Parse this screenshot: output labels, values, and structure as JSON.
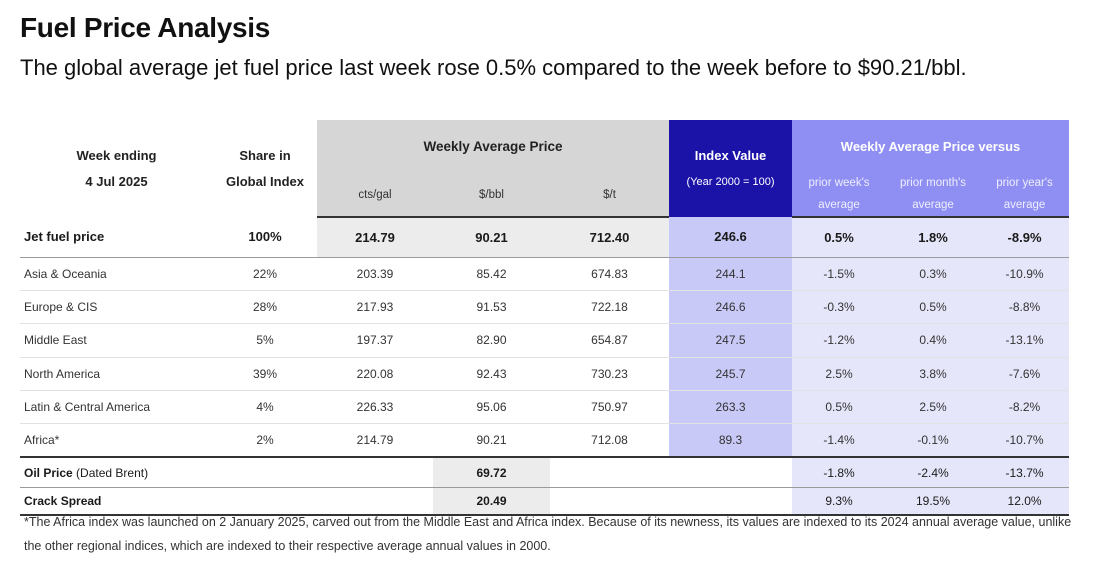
{
  "title": "Fuel Price Analysis",
  "subtitle": "The global average jet fuel price last week rose 0.5% compared to the week before to $90.21/bbl.",
  "header": {
    "week_label": "Week ending",
    "week_date": "4 Jul 2025",
    "share_label_1": "Share in",
    "share_label_2": "Global Index",
    "weekly_avg": "Weekly Average Price",
    "unit_cts": "cts/gal",
    "unit_bbl": "$/bbl",
    "unit_t": "$/t",
    "index_value": "Index Value",
    "index_base": "(Year 2000 = 100)",
    "versus": "Weekly Average Price versus",
    "prior_week_1": "prior week's",
    "prior_month_1": "prior month's",
    "prior_year_1": "prior year's",
    "average": "average"
  },
  "jet": {
    "label": "Jet fuel price",
    "share": "100%",
    "cts": "214.79",
    "bbl": "90.21",
    "t": "712.40",
    "index": "246.6",
    "week": "0.5%",
    "month": "1.8%",
    "year": "-8.9%"
  },
  "regions": [
    {
      "label": "Asia & Oceania",
      "share": "22%",
      "cts": "203.39",
      "bbl": "85.42",
      "t": "674.83",
      "index": "244.1",
      "week": "-1.5%",
      "month": "0.3%",
      "year": "-10.9%"
    },
    {
      "label": "Europe & CIS",
      "share": "28%",
      "cts": "217.93",
      "bbl": "91.53",
      "t": "722.18",
      "index": "246.6",
      "week": "-0.3%",
      "month": "0.5%",
      "year": "-8.8%"
    },
    {
      "label": "Middle East",
      "share": "5%",
      "cts": "197.37",
      "bbl": "82.90",
      "t": "654.87",
      "index": "247.5",
      "week": "-1.2%",
      "month": "0.4%",
      "year": "-13.1%"
    },
    {
      "label": "North America",
      "share": "39%",
      "cts": "220.08",
      "bbl": "92.43",
      "t": "730.23",
      "index": "245.7",
      "week": "2.5%",
      "month": "3.8%",
      "year": "-7.6%"
    },
    {
      "label": "Latin & Central America",
      "share": "4%",
      "cts": "226.33",
      "bbl": "95.06",
      "t": "750.97",
      "index": "263.3",
      "week": "0.5%",
      "month": "2.5%",
      "year": "-8.2%"
    },
    {
      "label": "Africa*",
      "share": "2%",
      "cts": "214.79",
      "bbl": "90.21",
      "t": "712.08",
      "index": "89.3",
      "week": "-1.4%",
      "month": "-0.1%",
      "year": "-10.7%"
    }
  ],
  "oil": {
    "label_bold": "Oil Price",
    "label_rest": " (Dated Brent)",
    "bbl": "69.72",
    "week": "-1.8%",
    "month": "-2.4%",
    "year": "-13.7%"
  },
  "crack": {
    "label": "Crack Spread",
    "bbl": "20.49",
    "week": "9.3%",
    "month": "19.5%",
    "year": "12.0%"
  },
  "footnote": "*The Africa index was launched on 2 January 2025, carved out from the Middle East and Africa index. Because of its newness, its values are indexed  to its 2024 annual average value, unlike the other regional indices, which are indexed to their respective average annual values in 2000.",
  "colors": {
    "index_header": "#1b13a8",
    "versus_header": "#8f8ff3",
    "price_header": "#d6d6d6",
    "index_column": "#c9c9f7",
    "versus_columns": "#e6e6fb"
  }
}
